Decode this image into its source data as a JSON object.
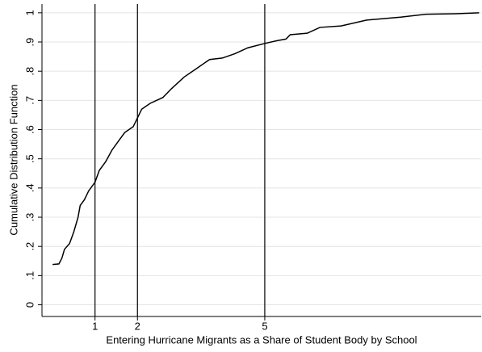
{
  "chart_data": {
    "type": "line",
    "xlabel": "Entering Hurricane Migrants as a Share of Student Body by School",
    "ylabel": "Cumulative Distribution Function",
    "x": [
      0,
      0.15,
      0.22,
      0.28,
      0.4,
      0.5,
      0.6,
      0.65,
      0.75,
      0.85,
      1,
      1.1,
      1.25,
      1.4,
      1.55,
      1.7,
      1.9,
      2,
      2.1,
      2.3,
      2.6,
      2.8,
      3.1,
      3.4,
      3.7,
      4.0,
      4.3,
      4.6,
      5,
      5.3,
      5.5,
      5.6,
      6.0,
      6.3,
      6.8,
      7.4,
      8.2,
      8.8,
      9.5,
      10.05
    ],
    "values": [
      0.138,
      0.14,
      0.16,
      0.19,
      0.21,
      0.25,
      0.3,
      0.34,
      0.36,
      0.39,
      0.42,
      0.46,
      0.49,
      0.53,
      0.56,
      0.59,
      0.61,
      0.64,
      0.67,
      0.69,
      0.71,
      0.74,
      0.78,
      0.81,
      0.84,
      0.845,
      0.86,
      0.88,
      0.895,
      0.905,
      0.91,
      0.925,
      0.93,
      0.95,
      0.955,
      0.975,
      0.985,
      0.995,
      0.997,
      1
    ],
    "color": "#000000",
    "xlim": [
      -0.25,
      10.1
    ],
    "xticks": [
      1,
      2,
      5
    ],
    "xtick_lines": true,
    "ylim": [
      -0.04,
      1.03
    ],
    "yticks": [
      0,
      {
        "value": 0.1,
        "label": ".1"
      },
      {
        "value": 0.2,
        "label": ".2"
      },
      {
        "value": 0.3,
        "label": ".3"
      },
      {
        "value": 0.4,
        "label": ".4"
      },
      {
        "value": 0.5,
        "label": ".5"
      },
      {
        "value": 0.6,
        "label": ".6"
      },
      {
        "value": 0.7,
        "label": ".7"
      },
      {
        "value": 0.8,
        "label": ".8"
      },
      {
        "value": 0.9,
        "label": ".9"
      },
      1
    ],
    "grid": true
  }
}
